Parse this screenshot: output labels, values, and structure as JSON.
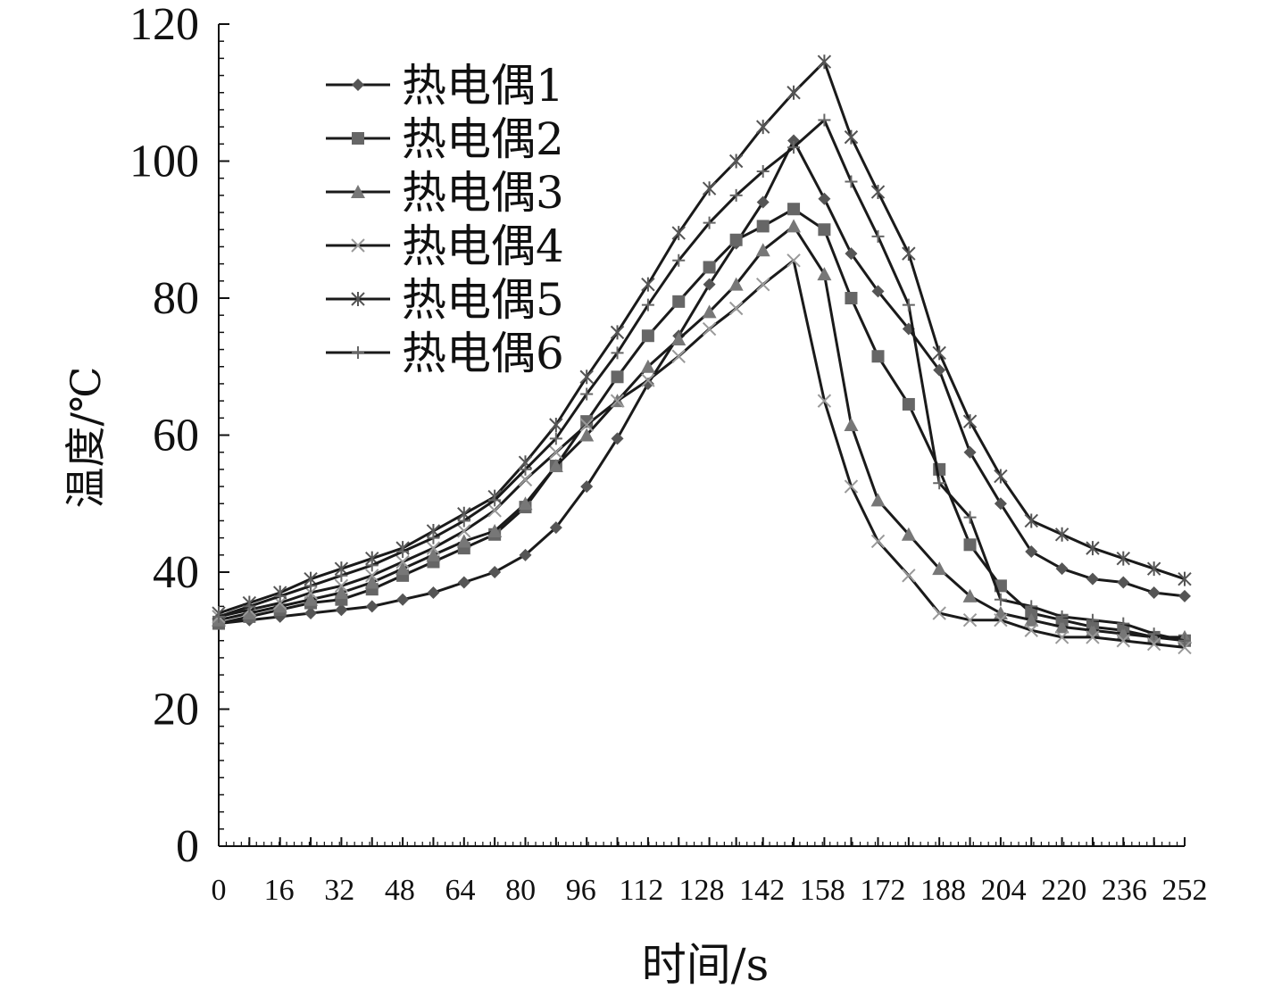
{
  "chart_data": {
    "type": "line",
    "title": "",
    "xlabel": "时间/s",
    "ylabel": "温度/℃",
    "ylim": [
      0,
      120
    ],
    "yticks": [
      "0",
      "20",
      "40",
      "60",
      "80",
      "100",
      "120"
    ],
    "xtick_labels": [
      "0",
      "16",
      "32",
      "48",
      "64",
      "80",
      "96",
      "112",
      "128",
      "142",
      "158",
      "172",
      "188",
      "204",
      "220",
      "236",
      "252"
    ],
    "grid": false,
    "legend_position": "top-left",
    "x": [
      0,
      8,
      16,
      24,
      32,
      40,
      48,
      56,
      64,
      72,
      80,
      88,
      96,
      104,
      112,
      120,
      128,
      135,
      142,
      150,
      158,
      165,
      172,
      180,
      188,
      196,
      204,
      212,
      220,
      228,
      236,
      244,
      252
    ],
    "series": [
      {
        "name": "热电偶1",
        "marker": "diamond",
        "color": "#555555",
        "values": [
          32.5,
          33,
          33.5,
          34,
          34.5,
          35,
          36,
          37,
          38.5,
          40,
          42.5,
          46.5,
          52.5,
          59.5,
          67.5,
          74.5,
          82,
          88,
          94,
          103,
          94.5,
          86.5,
          81,
          75.5,
          69.5,
          57.5,
          50,
          43,
          40.5,
          39,
          38.5,
          37,
          36.5
        ]
      },
      {
        "name": "热电偶2",
        "marker": "square",
        "color": "#666666",
        "values": [
          32.5,
          33.5,
          34.5,
          35.5,
          36,
          37.5,
          39.5,
          41.5,
          43.5,
          45.5,
          49.5,
          55.5,
          62,
          68.5,
          74.5,
          79.5,
          84.5,
          88.5,
          90.5,
          93,
          90,
          80,
          71.5,
          64.5,
          55,
          44,
          38,
          34,
          33,
          32,
          31.5,
          30.5,
          30
        ]
      },
      {
        "name": "热电偶3",
        "marker": "triangle",
        "color": "#777777",
        "values": [
          33,
          34,
          35,
          36,
          37,
          38.5,
          40.5,
          42.5,
          44.5,
          46,
          50,
          55.5,
          60,
          65,
          70,
          74,
          78,
          82,
          87,
          90.5,
          83.5,
          61.5,
          50.5,
          45.5,
          40.5,
          36.5,
          34,
          33,
          32,
          31.5,
          31,
          30.5,
          30.5
        ]
      },
      {
        "name": "热电偶4",
        "marker": "x",
        "color": "#999999",
        "values": [
          33.5,
          34.5,
          35.5,
          37,
          38,
          39.5,
          41.5,
          43.5,
          46,
          49,
          53.5,
          57.5,
          61.5,
          65,
          68,
          71.5,
          75.5,
          78.5,
          82,
          85.5,
          65,
          52.5,
          44.5,
          39.5,
          34,
          33,
          33,
          31.5,
          30.5,
          30.5,
          30,
          29.5,
          29
        ]
      },
      {
        "name": "热电偶5",
        "marker": "asterisk",
        "color": "#555555",
        "values": [
          34,
          35.5,
          37,
          39,
          40.5,
          42,
          43.5,
          46,
          48.5,
          51,
          56,
          61.5,
          68.5,
          75,
          82,
          89.5,
          96,
          100,
          105,
          110,
          114.5,
          103.5,
          95.5,
          86.5,
          72,
          62,
          54,
          47.5,
          45.5,
          43.5,
          42,
          40.5,
          39
        ]
      },
      {
        "name": "热电偶6",
        "marker": "plus",
        "color": "#666666",
        "values": [
          33.5,
          35,
          36.5,
          38,
          39.5,
          41,
          43,
          45,
          47.5,
          50.5,
          55,
          59.5,
          66,
          72,
          79,
          85.5,
          91,
          95,
          98.5,
          102,
          106,
          97,
          89,
          79,
          53,
          48,
          36,
          35,
          33.5,
          33,
          32.5,
          31,
          30
        ]
      }
    ]
  }
}
